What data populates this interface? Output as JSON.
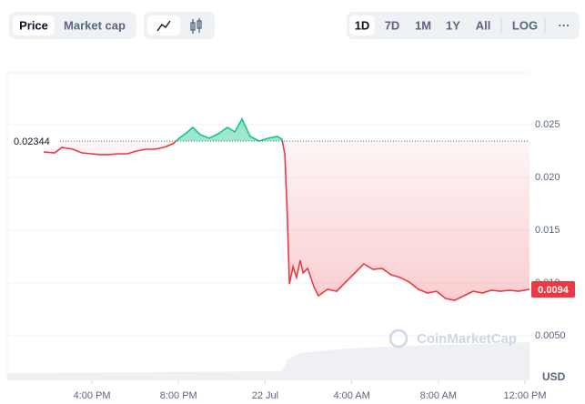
{
  "toolbar": {
    "views": [
      "Price",
      "Market cap"
    ],
    "ranges": [
      "1D",
      "7D",
      "1M",
      "1Y",
      "All"
    ],
    "scale": "LOG",
    "more": "···"
  },
  "chart_data": {
    "type": "line",
    "x": [
      13.77,
      14.28,
      14.61,
      15.12,
      15.54,
      15.96,
      16.38,
      16.8,
      17.22,
      17.64,
      18.06,
      18.48,
      18.9,
      19.32,
      19.74,
      20.03,
      20.37,
      20.66,
      21.0,
      21.42,
      21.84,
      22.26,
      22.6,
      22.93,
      23.31,
      23.73,
      24.15,
      24.57,
      24.78,
      24.91,
      25.03,
      25.12,
      25.29,
      25.45,
      25.62,
      25.75,
      25.96,
      26.25,
      26.46,
      26.88,
      27.3,
      27.72,
      28.14,
      28.56,
      28.98,
      29.4,
      29.82,
      30.24,
      30.66,
      31.08,
      31.5,
      31.92,
      32.34,
      32.76,
      33.18,
      33.61,
      34.03,
      34.45,
      34.87,
      35.29,
      35.71,
      36.21
    ],
    "values": [
      0.02241,
      0.02233,
      0.02284,
      0.02267,
      0.02233,
      0.02224,
      0.02216,
      0.02216,
      0.02224,
      0.02224,
      0.0225,
      0.02267,
      0.02267,
      0.02284,
      0.02319,
      0.02371,
      0.02422,
      0.02474,
      0.02405,
      0.02371,
      0.02414,
      0.02474,
      0.02431,
      0.02552,
      0.02388,
      0.02345,
      0.02371,
      0.02388,
      0.02362,
      0.02216,
      0.01612,
      0.00991,
      0.01155,
      0.01052,
      0.01216,
      0.01095,
      0.01138,
      0.00966,
      0.00879,
      0.0094,
      0.00922,
      0.01009,
      0.01095,
      0.01181,
      0.01129,
      0.01138,
      0.01078,
      0.01052,
      0.01009,
      0.0094,
      0.00905,
      0.00922,
      0.00853,
      0.00836,
      0.00879,
      0.00922,
      0.00905,
      0.00931,
      0.00922,
      0.00931,
      0.00922,
      0.0094
    ],
    "up_color": "#16c784",
    "down_color": "#ea3943",
    "reference": {
      "value": 0.02344,
      "label": "0.02344"
    },
    "last": {
      "value": 0.0094,
      "label": "0.0094"
    },
    "xlim": [
      12.09,
      36.21
    ],
    "xticks": [
      {
        "value": 16,
        "label": "4:00 PM"
      },
      {
        "value": 20,
        "label": "8:00 PM"
      },
      {
        "value": 24,
        "label": "22 Jul"
      },
      {
        "value": 28,
        "label": "4:00 AM"
      },
      {
        "value": 32,
        "label": "8:00 AM"
      },
      {
        "value": 36,
        "label": "12:00 PM"
      }
    ],
    "ylim": [
      0.00078,
      0.02991
    ],
    "yticks": [
      {
        "value": 0.005,
        "label": "0.0050"
      },
      {
        "value": 0.01,
        "label": "0.010"
      },
      {
        "value": 0.015,
        "label": "0.015"
      },
      {
        "value": 0.02,
        "label": "0.020"
      },
      {
        "value": 0.025,
        "label": "0.025"
      }
    ],
    "grid": true,
    "y_unit": "USD",
    "watermark": "CoinMarketCap"
  }
}
